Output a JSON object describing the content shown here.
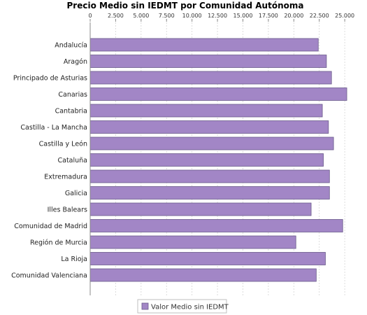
{
  "chart_data": {
    "type": "bar",
    "orientation": "horizontal",
    "title": "Precio Medio sin IEDMT por Comunidad Autónoma",
    "xlabel": "",
    "ylabel": "",
    "xlim": [
      0,
      26500
    ],
    "tick_values": [
      0,
      2500,
      5000,
      7500,
      10000,
      12500,
      15000,
      17500,
      20000,
      22500,
      25000
    ],
    "tick_labels": [
      "0",
      "2.500",
      "5.000",
      "7.500",
      "10.000",
      "12.500",
      "15.000",
      "17.500",
      "20.000",
      "22.500",
      "25.000"
    ],
    "x_axis_position": "top",
    "grid": true,
    "legend_position": "bottom",
    "categories": [
      "Andalucía",
      "Aragón",
      "Principado de Asturias",
      "Canarias",
      "Cantabria",
      "Castilla - La Mancha",
      "Castilla y León",
      "Cataluña",
      "Extremadura",
      "Galicia",
      "Illes Balears",
      "Comunidad de Madrid",
      "Región de Murcia",
      "La Rioja",
      "Comunidad Valenciana"
    ],
    "series": [
      {
        "name": "Valor Medio sin IEDMT",
        "color": "#a286c6",
        "values": [
          22400,
          23200,
          23700,
          25200,
          22800,
          23400,
          23900,
          22900,
          23500,
          23500,
          21700,
          24800,
          20200,
          23100,
          22200
        ]
      }
    ]
  }
}
